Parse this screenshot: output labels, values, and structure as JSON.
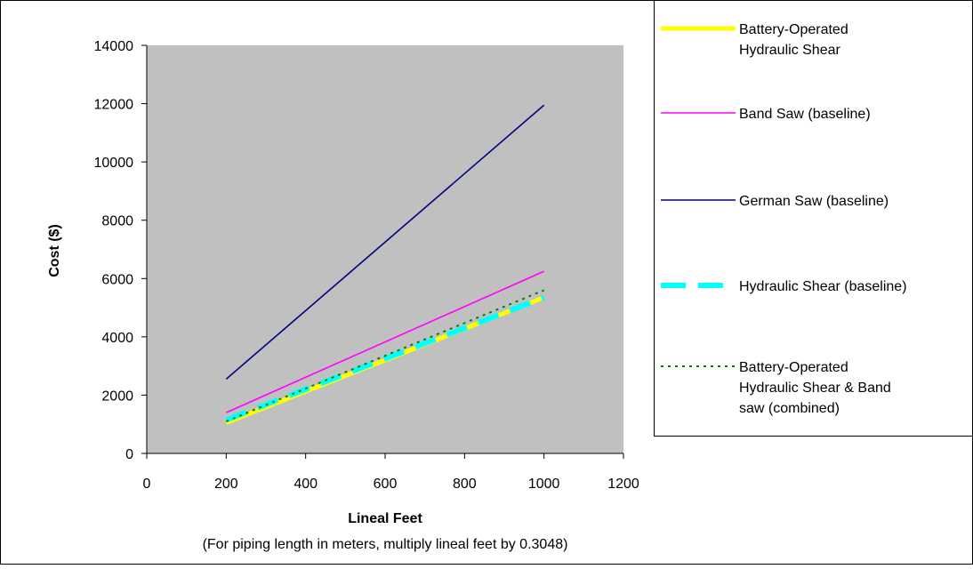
{
  "chart_data": {
    "type": "line",
    "ylabel": "Cost  ($)",
    "xlabel": "Lineal Feet",
    "note": "(For piping length in meters, multiply lineal feet by 0.3048)",
    "xlim": [
      0,
      1200
    ],
    "ylim": [
      0,
      14000
    ],
    "xticks": [
      0,
      200,
      400,
      600,
      800,
      1000,
      1200
    ],
    "yticks": [
      0,
      2000,
      4000,
      6000,
      8000,
      10000,
      12000,
      14000
    ],
    "grid": false,
    "plot_background": "#c0c0c0",
    "legend_position": "right",
    "series": [
      {
        "name": "Battery-Operated Hydraulic Shear",
        "legend_lines": [
          "Battery-Operated",
          "Hydraulic Shear"
        ],
        "x": [
          200,
          1000
        ],
        "y": [
          1050,
          5350
        ],
        "color": "#ffff00",
        "style": "solid-thick"
      },
      {
        "name": "Band Saw (baseline)",
        "legend_lines": [
          "Band Saw (baseline)"
        ],
        "x": [
          200,
          1000
        ],
        "y": [
          1400,
          6250
        ],
        "color": "#ff00ff",
        "style": "solid"
      },
      {
        "name": "German Saw (baseline)",
        "legend_lines": [
          "German Saw (baseline)"
        ],
        "x": [
          200,
          1000
        ],
        "y": [
          2550,
          11950
        ],
        "color": "#000080",
        "style": "solid"
      },
      {
        "name": "Hydraulic Shear (baseline)",
        "legend_lines": [
          "Hydraulic Shear (baseline)"
        ],
        "x": [
          200,
          1000
        ],
        "y": [
          1150,
          5350
        ],
        "color": "#00ffff",
        "style": "dashed-thick"
      },
      {
        "name": "Battery-Operated Hydraulic Shear & Band saw (combined)",
        "legend_lines": [
          "Battery-Operated",
          "Hydraulic Shear & Band",
          "saw (combined)"
        ],
        "x": [
          200,
          1000
        ],
        "y": [
          1100,
          5600
        ],
        "color": "#008000",
        "style": "dotted"
      }
    ]
  }
}
